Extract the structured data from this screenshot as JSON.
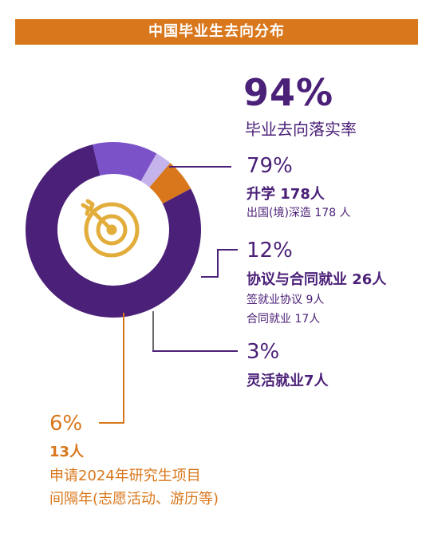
{
  "title": "中国毕业生去向分布",
  "headline": {
    "value": "94%",
    "label": "毕业去向落实率"
  },
  "segments": [
    {
      "key": "study",
      "pct": "79%",
      "title": "升学 178人",
      "detail": [
        "出国(境)深造 178 人"
      ]
    },
    {
      "key": "agreement",
      "pct": "12%",
      "title": "协议与合同就业 26人",
      "detail": [
        "签就业协议 9人",
        "合同就业 17人"
      ]
    },
    {
      "key": "flexible",
      "pct": "3%",
      "title": "灵活就业7人",
      "detail": []
    },
    {
      "key": "gap",
      "pct": "6%",
      "title": "13人",
      "detail": [
        "申请2024年研究生项目",
        "间隔年(志愿活动、游历等)"
      ]
    }
  ],
  "colors": {
    "banner": "#d9771c",
    "dark_purple": "#4b2078",
    "mid_purple": "#7b52c7",
    "light_purple": "#c5b3ec",
    "orange": "#d9771c",
    "icon": "#e2ad3b",
    "leader_gray": "#6a6a6a"
  },
  "icon": "target-arrow-icon",
  "chart_data": {
    "type": "pie",
    "donut": true,
    "title": "中国毕业生去向分布",
    "categories": [
      "升学",
      "协议与合同就业",
      "灵活就业",
      ""
    ],
    "values": [
      79,
      12,
      3,
      6
    ],
    "counts": [
      178,
      26,
      7,
      13
    ],
    "slice_colors": [
      "#4b2078",
      "#7b52c7",
      "#c5b3ec",
      "#d9771c"
    ]
  }
}
